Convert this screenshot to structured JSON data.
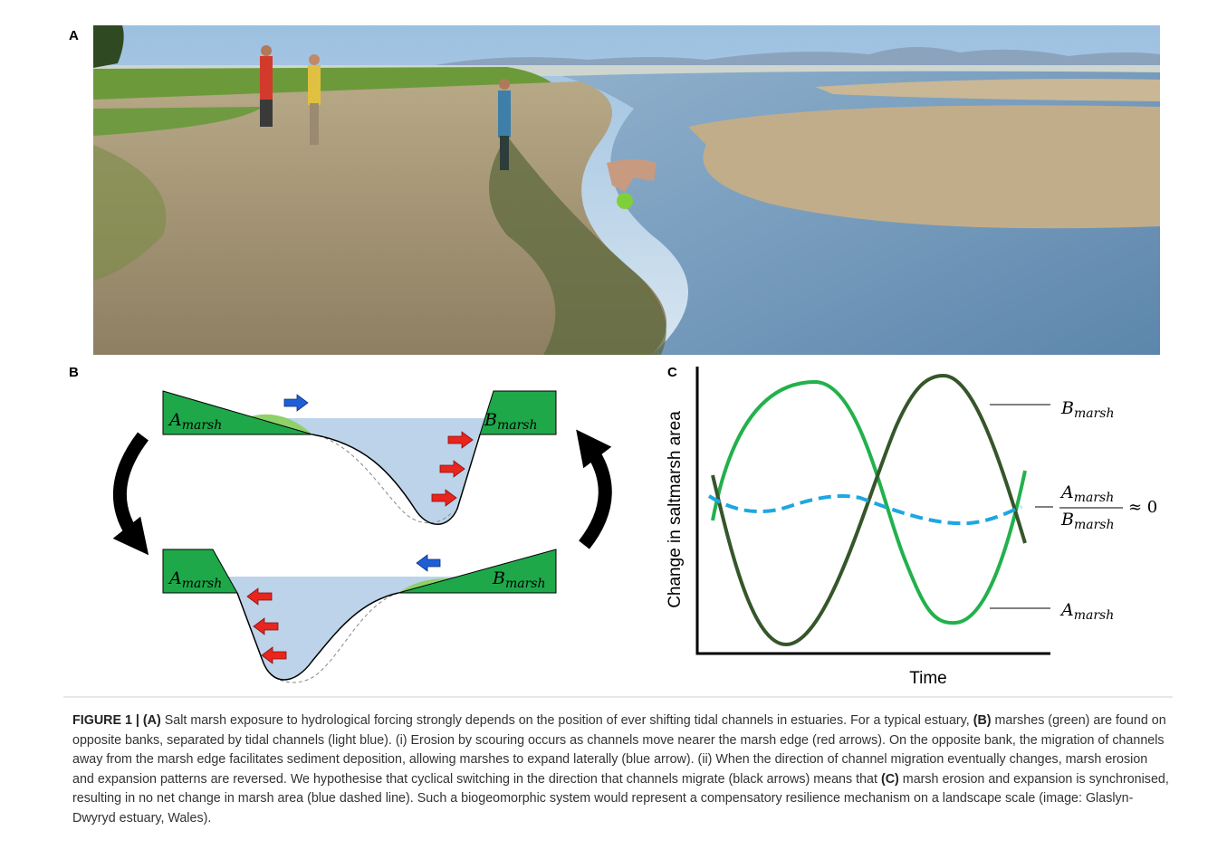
{
  "panels": {
    "a": {
      "label": "A"
    },
    "b": {
      "label": "B",
      "top": {
        "left_marsh": {
          "main": "A",
          "sub": "marsh"
        },
        "right_marsh": {
          "main": "B",
          "sub": "marsh"
        }
      },
      "bottom": {
        "left_marsh": {
          "main": "A",
          "sub": "marsh"
        },
        "right_marsh": {
          "main": "B",
          "sub": "marsh"
        }
      }
    },
    "c": {
      "label": "C",
      "y_label": "Change in saltmarsh area",
      "x_label": "Time",
      "b_curve_label": {
        "main": "B",
        "sub": "marsh"
      },
      "ratio_label": {
        "numerator": {
          "main": "A",
          "sub": "marsh"
        },
        "denominator": {
          "main": "B",
          "sub": "marsh"
        },
        "relation": "≈ 0"
      },
      "a_curve_label": {
        "main": "A",
        "sub": "marsh"
      }
    }
  },
  "caption": {
    "segments": [
      {
        "text": "FIGURE 1 | (A)",
        "bold": true
      },
      {
        "text": " Salt marsh exposure to hydrological forcing strongly depends on the position of ever shifting tidal channels in estuaries. For a typical estuary, ",
        "bold": false
      },
      {
        "text": "(B)",
        "bold": true
      },
      {
        "text": " marshes (green) are found on opposite banks, separated by tidal channels (light blue). (i) Erosion by scouring occurs as channels move nearer the marsh edge (red arrows). On the opposite bank, the migration of channels away from the marsh edge facilitates sediment deposition, allowing marshes to expand laterally (blue arrow). (ii) When the direction of channel migration eventually changes, marsh erosion and expansion patterns are reversed. We hypothesise that cyclical switching in the direction that channels migrate (black arrows) means that ",
        "bold": false
      },
      {
        "text": "(C)",
        "bold": true
      },
      {
        "text": " marsh erosion and expansion is synchronised, resulting in no net change in marsh area (blue dashed line). Such a biogeomorphic system would represent a compensatory resilience mechanism on a landscape scale (image: Glaslyn-Dwyryd estuary, Wales).",
        "bold": false
      }
    ]
  }
}
